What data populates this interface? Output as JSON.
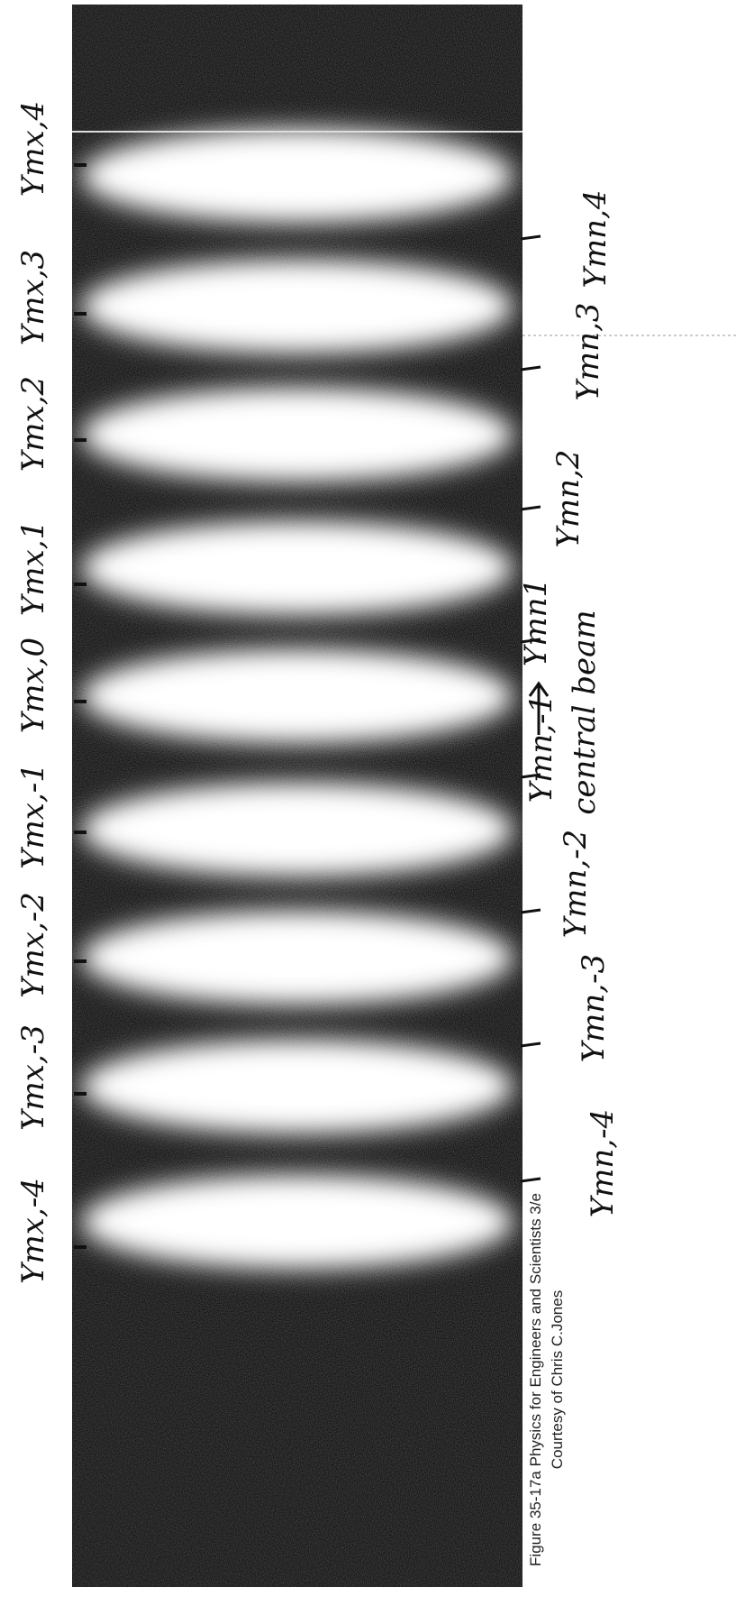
{
  "photo": {
    "maxima_labels": [
      "Ymx,4",
      "Ymx,3",
      "Ymx,2",
      "Ymx,1",
      "Ymx,0",
      "Ymx,-1",
      "Ymx,-2",
      "Ymx,-3",
      "Ymx,-4"
    ],
    "minima_labels": [
      "Ymn,4",
      "Ymn,3",
      "Ymn,2",
      "Ymn1",
      "Ymn,-1",
      "Ymn,-2",
      "Ymn,-3",
      "Ymn,-4"
    ],
    "annotation": "central beam",
    "caption": [
      "Figure 35-17a  Physics for Engineers and Scientists 3/e",
      "Courtesy of Chris C.Jones"
    ]
  }
}
